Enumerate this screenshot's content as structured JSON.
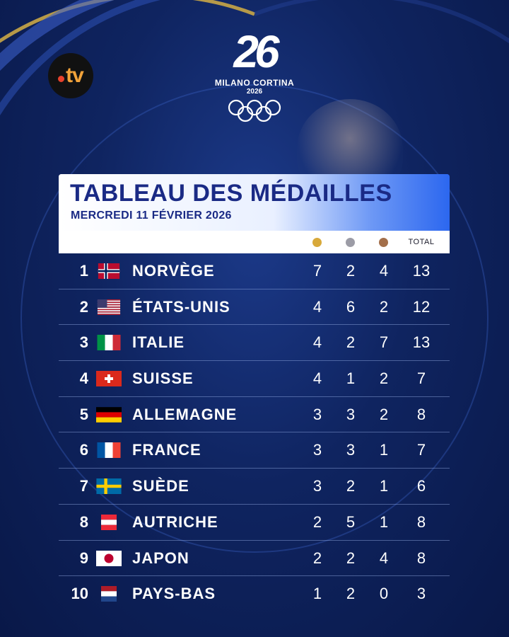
{
  "branding": {
    "broadcaster": "tv",
    "event_number": "26",
    "event_city": "MILANO CORTINA",
    "event_year": "2026"
  },
  "header": {
    "title": "TABLEAU DES MÉDAILLES",
    "date": "MERCREDI 11 FÉVRIER 2026"
  },
  "columns": {
    "total_label": "TOTAL"
  },
  "colors": {
    "gold": "#d8a93a",
    "silver": "#9c9ca6",
    "bronze": "#a36f4a",
    "title": "#1a2a85"
  },
  "rows": [
    {
      "rank": "1",
      "country": "NORVÈGE",
      "flag": "norway-flag",
      "gold": "7",
      "silver": "2",
      "bronze": "4",
      "total": "13"
    },
    {
      "rank": "2",
      "country": "ÉTATS-UNIS",
      "flag": "usa-flag",
      "gold": "4",
      "silver": "6",
      "bronze": "2",
      "total": "12"
    },
    {
      "rank": "3",
      "country": "ITALIE",
      "flag": "italy-flag",
      "gold": "4",
      "silver": "2",
      "bronze": "7",
      "total": "13"
    },
    {
      "rank": "4",
      "country": "SUISSE",
      "flag": "switzerland-flag",
      "gold": "4",
      "silver": "1",
      "bronze": "2",
      "total": "7"
    },
    {
      "rank": "5",
      "country": "ALLEMAGNE",
      "flag": "germany-flag",
      "gold": "3",
      "silver": "3",
      "bronze": "2",
      "total": "8"
    },
    {
      "rank": "6",
      "country": "FRANCE",
      "flag": "france-flag",
      "gold": "3",
      "silver": "3",
      "bronze": "1",
      "total": "7"
    },
    {
      "rank": "7",
      "country": "SUÈDE",
      "flag": "sweden-flag",
      "gold": "3",
      "silver": "2",
      "bronze": "1",
      "total": "6"
    },
    {
      "rank": "8",
      "country": "AUTRICHE",
      "flag": "austria-flag",
      "gold": "2",
      "silver": "5",
      "bronze": "1",
      "total": "8"
    },
    {
      "rank": "9",
      "country": "JAPON",
      "flag": "japan-flag",
      "gold": "2",
      "silver": "2",
      "bronze": "4",
      "total": "8"
    },
    {
      "rank": "10",
      "country": "PAYS-BAS",
      "flag": "netherlands-flag",
      "gold": "1",
      "silver": "2",
      "bronze": "0",
      "total": "3"
    }
  ]
}
